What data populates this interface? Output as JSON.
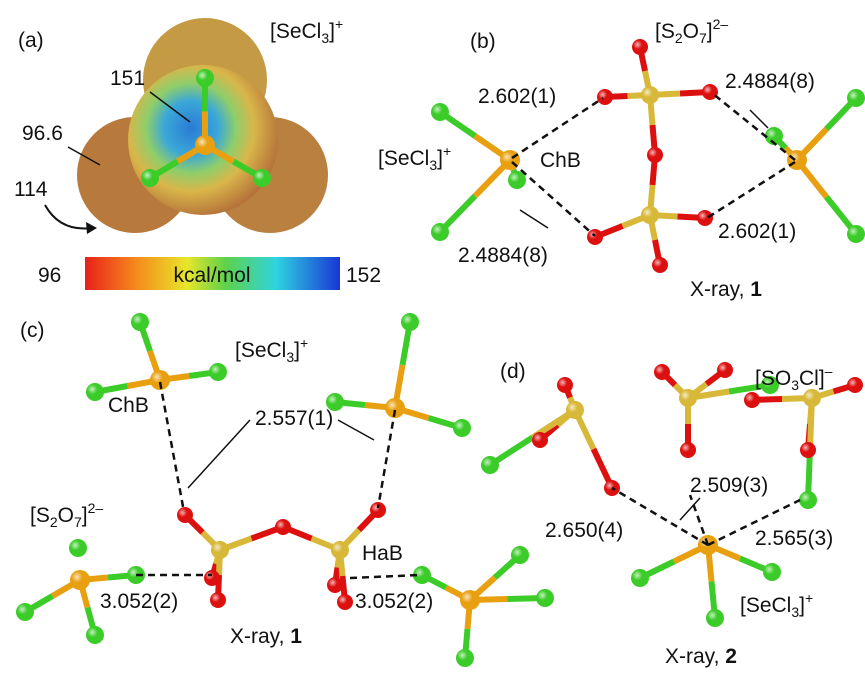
{
  "panel_a": {
    "tag": "(a)",
    "formula": [
      "[SeCl",
      "3",
      "]",
      "+"
    ],
    "labels": {
      "top": 151,
      "left": 96.6,
      "arrow": 114
    },
    "colorbar": {
      "min": 96,
      "unit": "kcal/mol",
      "max": 152
    }
  },
  "panel_b": {
    "tag": "(b)",
    "anion": [
      "[S",
      "2",
      "O",
      "7",
      "]",
      "2–"
    ],
    "cation": [
      "[SeCl",
      "3",
      "]",
      "+"
    ],
    "chb": "ChB",
    "distances": [
      "2.602(1)",
      "2.4884(8)",
      "2.4884(8)",
      "2.602(1)"
    ],
    "caption": [
      "X-ray, ",
      "1"
    ]
  },
  "panel_c": {
    "tag": "(c)",
    "cation": [
      "[SeCl",
      "3",
      "]",
      "+"
    ],
    "anion": [
      "[S",
      "2",
      "O",
      "7",
      "]",
      "2–"
    ],
    "chb": "ChB",
    "hab": "HaB",
    "distances": [
      "2.557(1)",
      "3.052(2)",
      "3.052(2)"
    ],
    "caption": [
      "X-ray, ",
      "1"
    ]
  },
  "panel_d": {
    "tag": "(d)",
    "anion": [
      "[SO",
      "3",
      "Cl]",
      "–"
    ],
    "cation": [
      "[SeCl",
      "3",
      "]",
      "+"
    ],
    "distances": [
      "2.509(3)",
      "2.650(4)",
      "2.565(3)"
    ],
    "caption": [
      "X-ray, ",
      "2"
    ]
  }
}
